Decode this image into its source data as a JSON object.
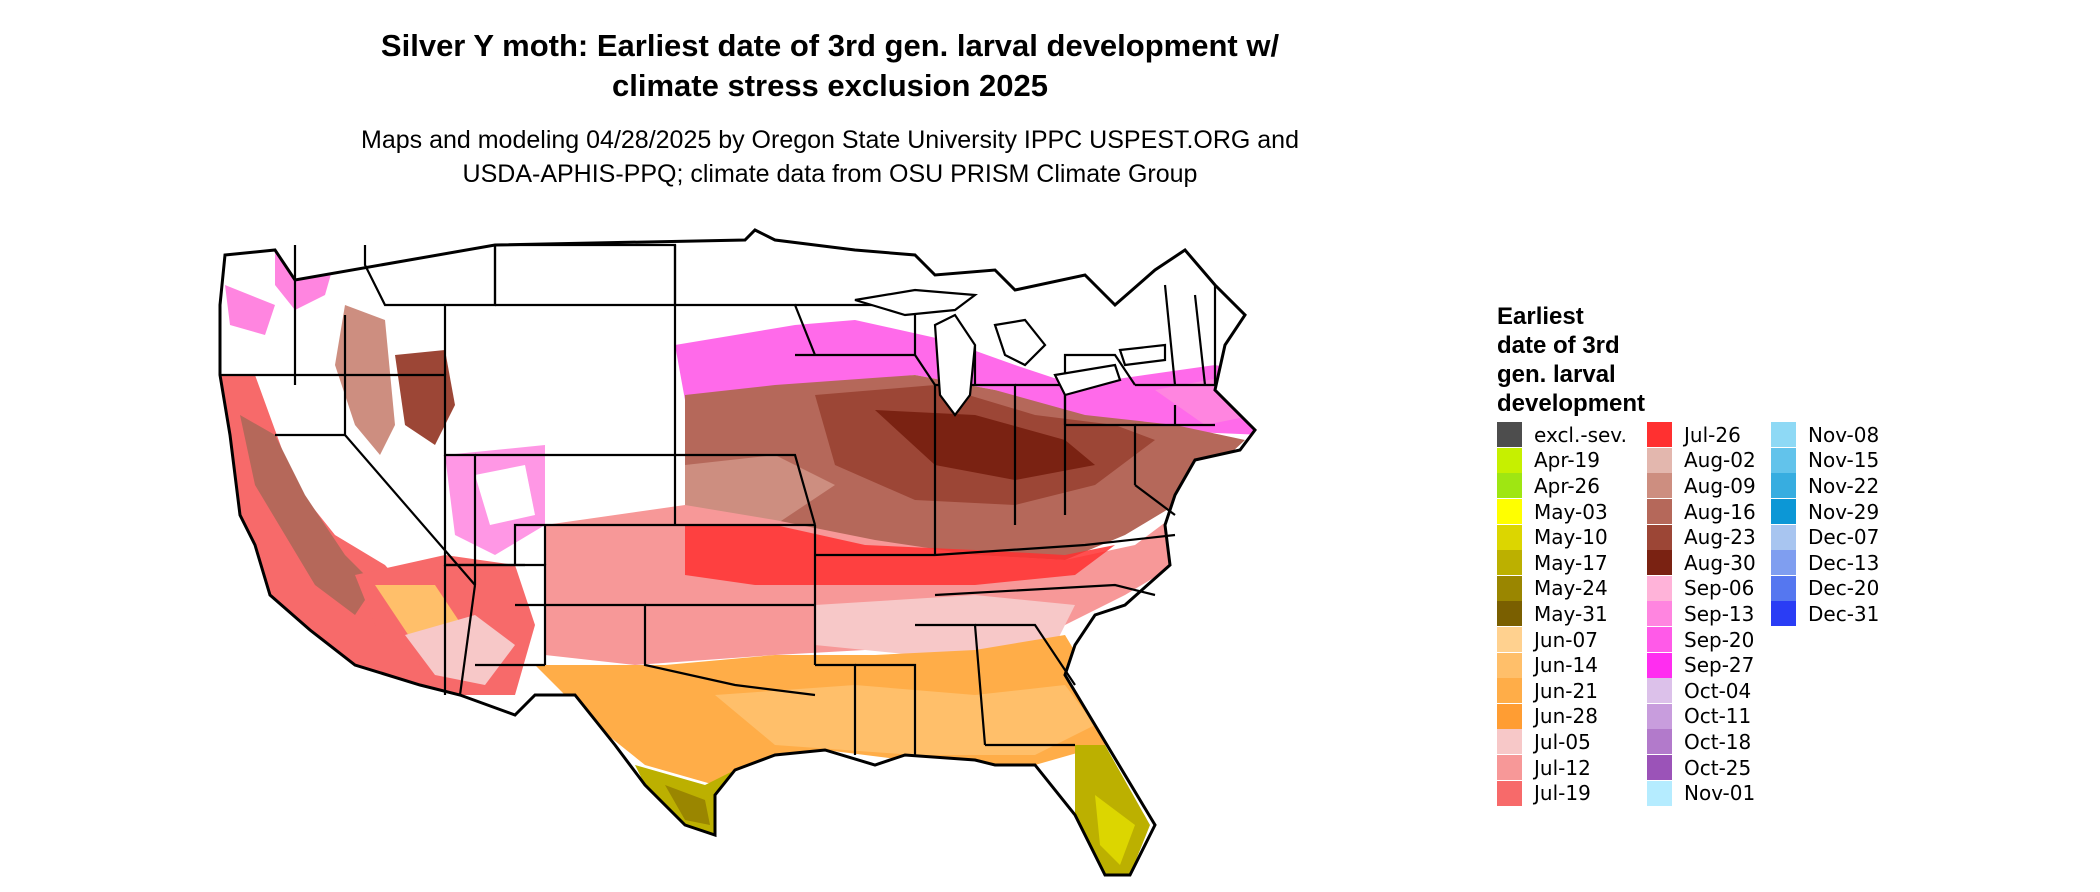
{
  "title_line1": "Silver Y moth: Earliest date of 3rd gen. larval development w/",
  "title_line2": "climate stress exclusion 2025",
  "subtitle_line1": "Maps and modeling 04/28/2025 by Oregon State University IPPC USPEST.ORG and",
  "subtitle_line2": "USDA-APHIS-PPQ; climate data from OSU PRISM Climate Group",
  "legend": {
    "title_lines": [
      "Earliest",
      "date of 3rd",
      "gen. larval",
      "development"
    ],
    "columns": [
      [
        {
          "label": "excl.-sev.",
          "color": "#4d4d4d"
        },
        {
          "label": "Apr-19",
          "color": "#c6f000"
        },
        {
          "label": "Apr-26",
          "color": "#9fe612"
        },
        {
          "label": "May-03",
          "color": "#ffff00"
        },
        {
          "label": "May-10",
          "color": "#dcd600"
        },
        {
          "label": "May-17",
          "color": "#bcb000"
        },
        {
          "label": "May-24",
          "color": "#9a8600"
        },
        {
          "label": "May-31",
          "color": "#7a5f00"
        },
        {
          "label": "Jun-07",
          "color": "#ffd18f"
        },
        {
          "label": "Jun-14",
          "color": "#ffbf6a"
        },
        {
          "label": "Jun-21",
          "color": "#ffad48"
        },
        {
          "label": "Jun-28",
          "color": "#ff9d33"
        },
        {
          "label": "Jul-05",
          "color": "#f7c8c8"
        },
        {
          "label": "Jul-12",
          "color": "#f79898"
        },
        {
          "label": "Jul-19",
          "color": "#f76a6a"
        }
      ],
      [
        {
          "label": "Jul-26",
          "color": "#ff3030"
        },
        {
          "label": "Aug-02",
          "color": "#e3b7ae"
        },
        {
          "label": "Aug-09",
          "color": "#cd8e80"
        },
        {
          "label": "Aug-16",
          "color": "#b5685a"
        },
        {
          "label": "Aug-23",
          "color": "#9c4636"
        },
        {
          "label": "Aug-30",
          "color": "#7a2212"
        },
        {
          "label": "Sep-06",
          "color": "#ffb3d9"
        },
        {
          "label": "Sep-13",
          "color": "#ff85e0"
        },
        {
          "label": "Sep-20",
          "color": "#ff5ae8"
        },
        {
          "label": "Sep-27",
          "color": "#ff2df0"
        },
        {
          "label": "Oct-04",
          "color": "#dcc1ea"
        },
        {
          "label": "Oct-11",
          "color": "#c89ddd"
        },
        {
          "label": "Oct-18",
          "color": "#b27acb"
        },
        {
          "label": "Oct-25",
          "color": "#9b53b8"
        },
        {
          "label": "Nov-01",
          "color": "#b5ecff"
        }
      ],
      [
        {
          "label": "Nov-08",
          "color": "#8ed9f5"
        },
        {
          "label": "Nov-15",
          "color": "#62c3eb"
        },
        {
          "label": "Nov-22",
          "color": "#37ade0"
        },
        {
          "label": "Nov-29",
          "color": "#0c97d6"
        },
        {
          "label": "Dec-07",
          "color": "#a8c5f0"
        },
        {
          "label": "Dec-13",
          "color": "#7f9ef0"
        },
        {
          "label": "Dec-20",
          "color": "#5577f0"
        },
        {
          "label": "Dec-31",
          "color": "#2a3df5"
        }
      ]
    ]
  }
}
